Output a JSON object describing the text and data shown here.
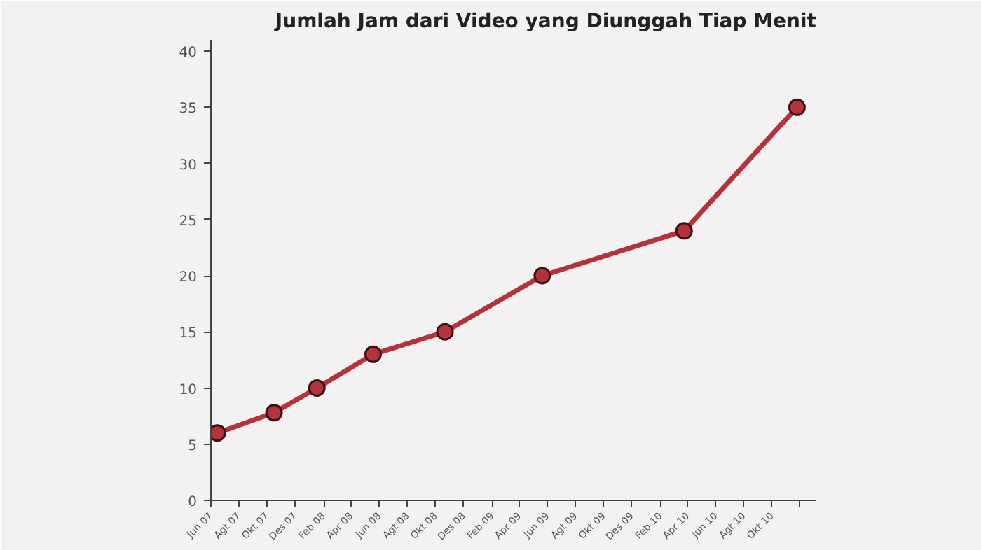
{
  "chart_data": {
    "type": "line",
    "title": "Jumlah Jam dari Video yang Diunggah Tiap Menit",
    "x": [
      "2007-06-15",
      "2007-10-16",
      "2008-01-17",
      "2008-05-18",
      "2008-10-21",
      "2009-05-20",
      "2010-03-24",
      "2010-11-24"
    ],
    "series": [
      {
        "color": "#b5323a",
        "values": [
          6,
          7.8,
          10,
          13,
          15,
          20,
          24,
          35
        ]
      }
    ],
    "xlim": [
      "2007-06-01",
      "2011-01-05"
    ],
    "xticks": [
      {
        "value": "2007-06-01",
        "label": "Jun 07"
      },
      {
        "value": "2007-08-01",
        "label": "Agt 07"
      },
      {
        "value": "2007-10-01",
        "label": "Okt 07"
      },
      {
        "value": "2007-12-01",
        "label": "Des 07"
      },
      {
        "value": "2008-02-01",
        "label": "Feb 08"
      },
      {
        "value": "2008-04-01",
        "label": "Apr 08"
      },
      {
        "value": "2008-06-01",
        "label": "Jun 08"
      },
      {
        "value": "2008-08-01",
        "label": "Agt 08"
      },
      {
        "value": "2008-10-01",
        "label": "Okt 08"
      },
      {
        "value": "2008-12-01",
        "label": "Des 08"
      },
      {
        "value": "2009-02-01",
        "label": "Feb 09"
      },
      {
        "value": "2009-04-01",
        "label": "Apr 09"
      },
      {
        "value": "2009-06-01",
        "label": "Jun 09"
      },
      {
        "value": "2009-08-01",
        "label": "Agt 09"
      },
      {
        "value": "2009-10-01",
        "label": "Okt 09"
      },
      {
        "value": "2009-12-01",
        "label": "Des 09"
      },
      {
        "value": "2010-02-01",
        "label": "Feb 10"
      },
      {
        "value": "2010-04-01",
        "label": "Apr 10"
      },
      {
        "value": "2010-06-01",
        "label": "Jun 10"
      },
      {
        "value": "2010-08-01",
        "label": "Agt 10"
      },
      {
        "value": "2010-10-01",
        "label": "Okt 10"
      },
      {
        "value": "2010-12-01",
        "label": null
      }
    ],
    "ylim": [
      0,
      41
    ],
    "yticks": [
      0,
      5,
      10,
      15,
      20,
      25,
      30,
      35,
      40
    ],
    "grid": false,
    "marker": "circle",
    "line_style": "solid"
  }
}
